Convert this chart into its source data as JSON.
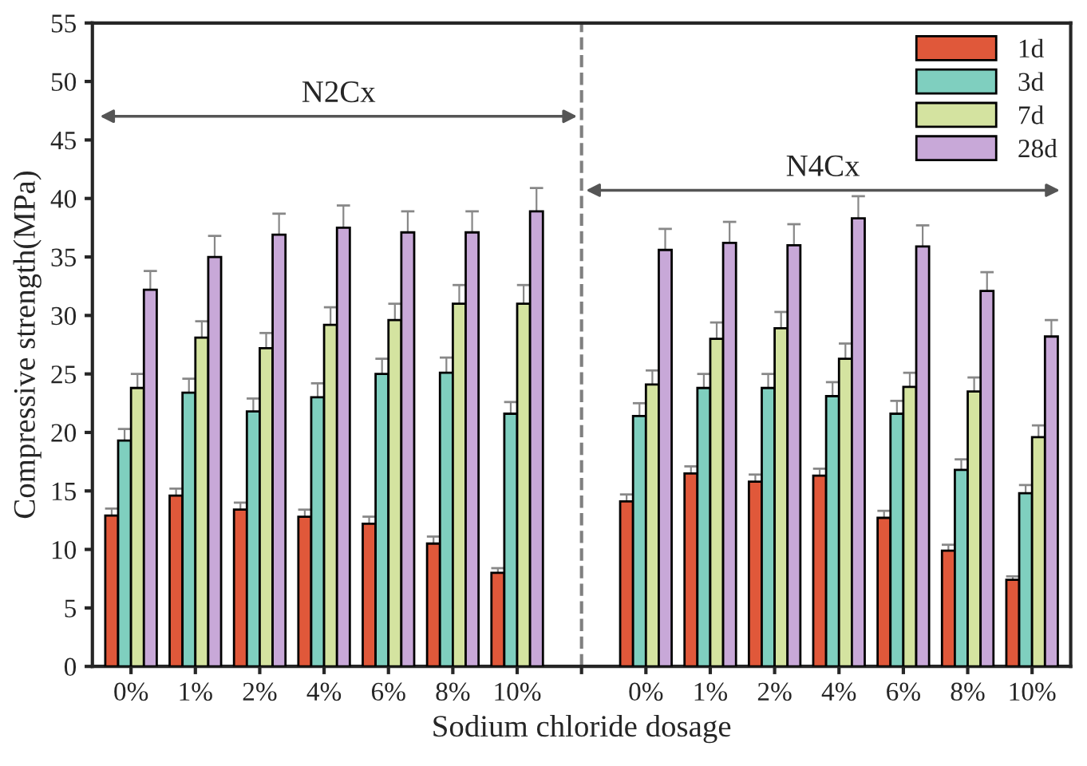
{
  "chart_data": {
    "type": "bar",
    "xlabel": "Sodium chloride dosage",
    "ylabel": "Compressive strength(MPa)",
    "categories": [
      "0%",
      "1%",
      "2%",
      "4%",
      "6%",
      "8%",
      "10%",
      null,
      "0%",
      "1%",
      "2%",
      "4%",
      "6%",
      "8%",
      "10%"
    ],
    "series": [
      {
        "name": "1d",
        "color": "#e0583a",
        "values": [
          12.9,
          14.6,
          13.4,
          12.8,
          12.2,
          10.5,
          8.0,
          null,
          14.1,
          16.5,
          15.8,
          16.3,
          12.7,
          9.9,
          7.4
        ],
        "errors": [
          0.6,
          0.6,
          0.6,
          0.6,
          0.6,
          0.6,
          0.4,
          null,
          0.6,
          0.6,
          0.6,
          0.6,
          0.6,
          0.5,
          0.3
        ]
      },
      {
        "name": "3d",
        "color": "#7fcfbf",
        "values": [
          19.3,
          23.4,
          21.8,
          23.0,
          25.0,
          25.1,
          21.6,
          null,
          21.4,
          23.8,
          23.8,
          23.1,
          21.6,
          16.8,
          14.8
        ],
        "errors": [
          1.0,
          1.2,
          1.1,
          1.2,
          1.3,
          1.3,
          1.0,
          null,
          1.1,
          1.2,
          1.2,
          1.2,
          1.1,
          0.9,
          0.7
        ]
      },
      {
        "name": "7d",
        "color": "#d4e3a0",
        "values": [
          23.8,
          28.1,
          27.2,
          29.2,
          29.6,
          31.0,
          31.0,
          null,
          24.1,
          28.0,
          28.9,
          26.3,
          23.9,
          23.5,
          19.6
        ],
        "errors": [
          1.2,
          1.4,
          1.3,
          1.5,
          1.4,
          1.6,
          1.6,
          null,
          1.2,
          1.4,
          1.4,
          1.3,
          1.2,
          1.2,
          1.0
        ]
      },
      {
        "name": "28d",
        "color": "#c8a8d8",
        "values": [
          32.2,
          35.0,
          36.9,
          37.5,
          37.1,
          37.1,
          38.9,
          null,
          35.6,
          36.2,
          36.0,
          38.3,
          35.9,
          32.1,
          28.2
        ],
        "errors": [
          1.6,
          1.8,
          1.8,
          1.9,
          1.8,
          1.8,
          2.0,
          null,
          1.8,
          1.8,
          1.8,
          1.9,
          1.8,
          1.6,
          1.4
        ]
      }
    ],
    "ylim": [
      0,
      55
    ],
    "yticks": [
      0,
      5,
      10,
      15,
      20,
      25,
      30,
      35,
      40,
      45,
      50,
      55
    ],
    "ref_lines": [
      {
        "axis": "x",
        "value": null,
        "color": "#808080",
        "line_style": "dashed"
      }
    ],
    "annotations": [
      "N2Cx",
      "N4Cx"
    ],
    "legend": "top right"
  }
}
